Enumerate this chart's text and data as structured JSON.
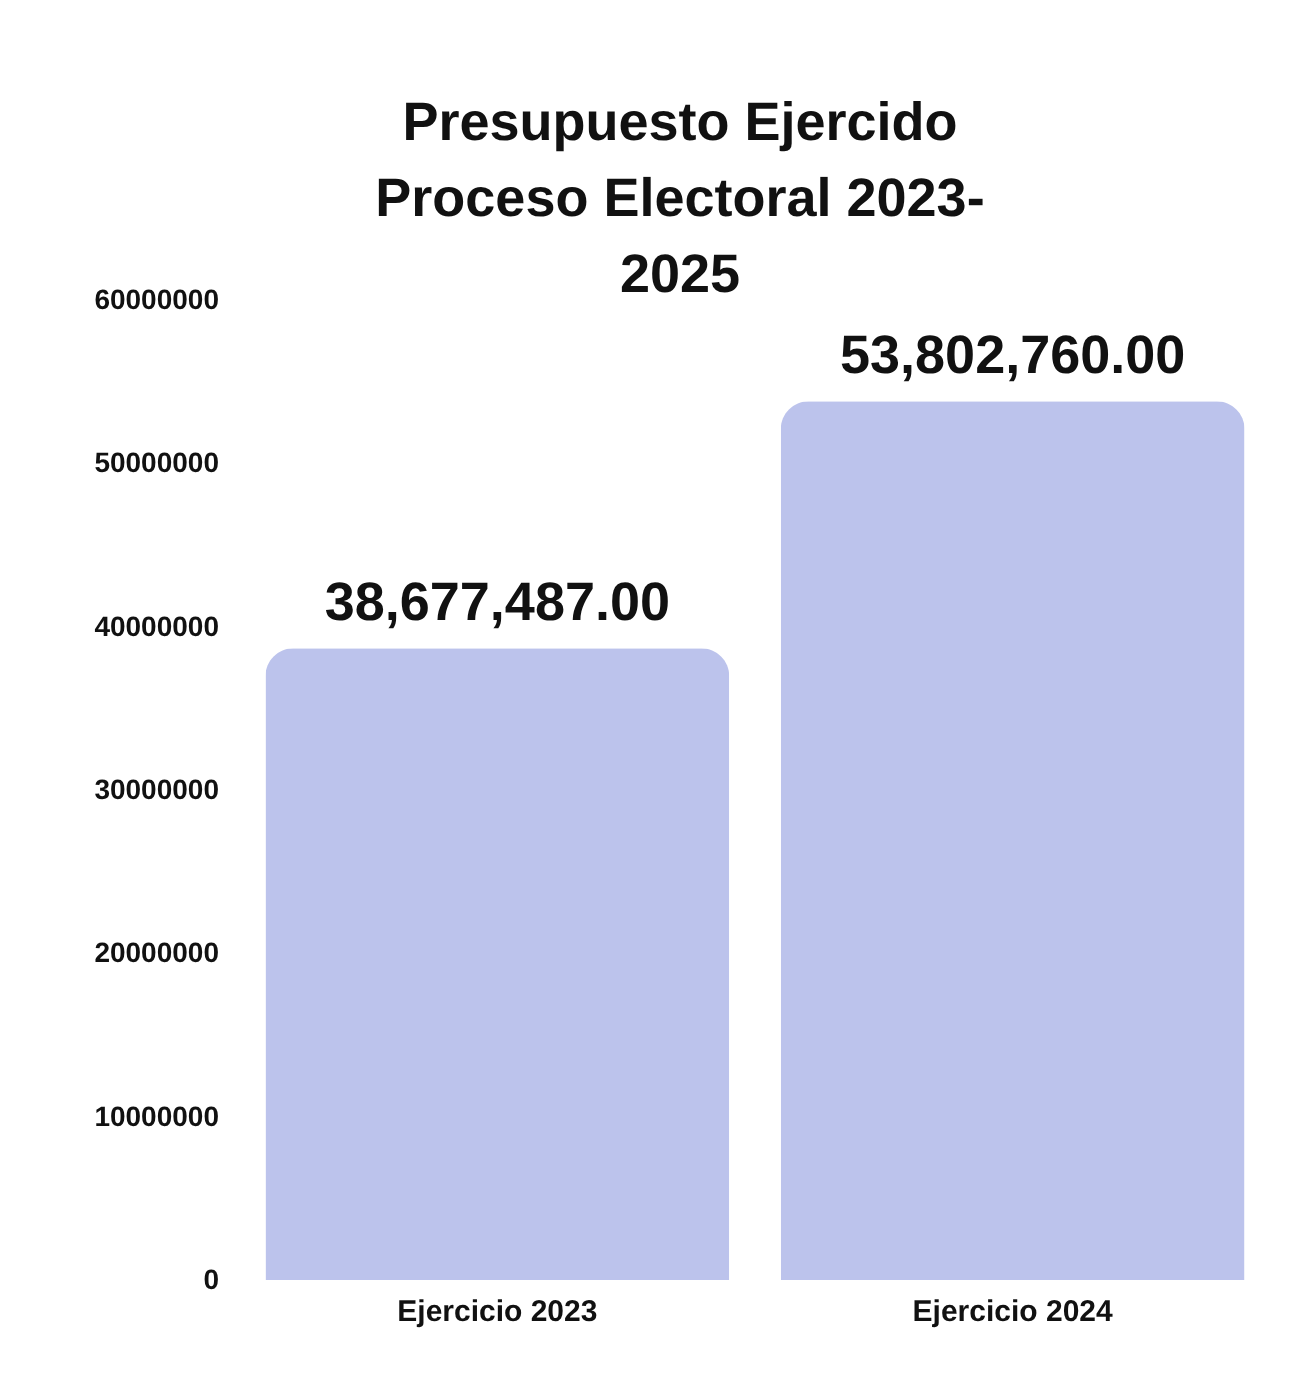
{
  "chart_data": {
    "type": "bar",
    "title": "Presupuesto Ejercido Proceso Electoral 2023-2025",
    "categories": [
      "Ejercicio 2023",
      "Ejercicio 2024"
    ],
    "values": [
      38677487,
      53802760
    ],
    "value_labels": [
      "38,677,487.00",
      "53,802,760.00"
    ],
    "color": "#bcc3ec",
    "ylim": [
      0,
      60000000
    ],
    "yticks": [
      0,
      10000000,
      20000000,
      30000000,
      40000000,
      50000000,
      60000000
    ]
  }
}
